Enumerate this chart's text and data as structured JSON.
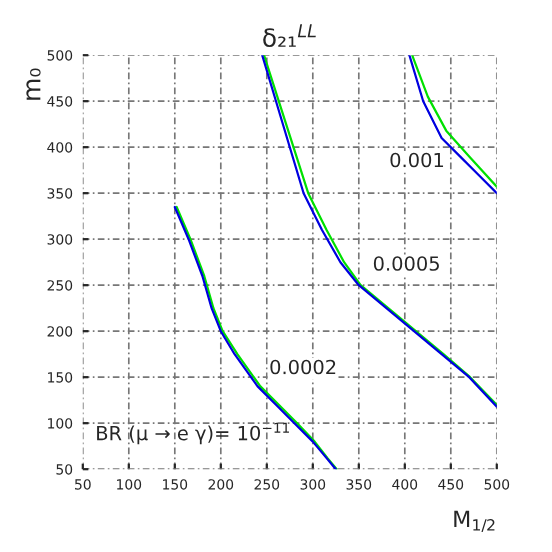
{
  "chart_data": {
    "type": "line",
    "title": "δ₂₁$^{LL}$",
    "xlabel": "M$_{1/2}$",
    "ylabel": "m₀",
    "xlim": [
      50,
      500
    ],
    "ylim": [
      50,
      500
    ],
    "xticks": [
      50,
      100,
      150,
      200,
      250,
      300,
      350,
      400,
      450,
      500
    ],
    "yticks": [
      50,
      100,
      150,
      200,
      250,
      300,
      350,
      400,
      450,
      500
    ],
    "grid": true,
    "line_style": "solid",
    "marker": "none",
    "series": [
      {
        "color": "#00e000",
        "x": [
          152,
          167,
          182,
          192,
          202,
          218,
          243,
          263,
          283,
          302,
          316,
          326
        ],
        "values": [
          335,
          300,
          260,
          225,
          200,
          175,
          140,
          120,
          100,
          80,
          62,
          50
        ]
      },
      {
        "color": "#0000e0",
        "x": [
          150,
          165,
          180,
          190,
          200,
          215,
          240,
          260,
          280,
          300,
          315,
          325
        ],
        "values": [
          335,
          300,
          260,
          225,
          200,
          175,
          140,
          120,
          100,
          80,
          62,
          50
        ]
      },
      {
        "color": "#00e000",
        "x": [
          247,
          263,
          279,
          295,
          315,
          334,
          352,
          382,
          412,
          442,
          471,
          500
        ],
        "values": [
          500,
          450,
          400,
          350,
          310,
          275,
          250,
          225,
          200,
          175,
          150,
          120
        ]
      },
      {
        "color": "#0000e0",
        "x": [
          245,
          260,
          275,
          290,
          310,
          330,
          350,
          380,
          410,
          440,
          470,
          500
        ],
        "values": [
          500,
          450,
          400,
          350,
          310,
          275,
          250,
          225,
          200,
          175,
          150,
          118
        ]
      },
      {
        "color": "#00e000",
        "x": [
          408,
          425,
          445,
          470,
          500
        ],
        "values": [
          500,
          455,
          418,
          390,
          357
        ]
      },
      {
        "color": "#0000e0",
        "x": [
          405,
          420,
          440,
          460,
          480,
          500
        ],
        "values": [
          500,
          450,
          410,
          390,
          370,
          350
        ]
      }
    ],
    "annotations": [
      "0.001",
      "0.0005",
      "0.0002",
      "BR (μ → e γ)= 10$^{−11}$"
    ]
  }
}
